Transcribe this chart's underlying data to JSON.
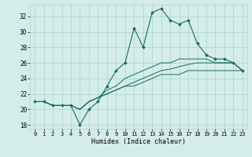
{
  "title": "",
  "xlabel": "Humidex (Indice chaleur)",
  "xlim": [
    -0.5,
    23.5
  ],
  "ylim": [
    17.5,
    33.5
  ],
  "xticks": [
    0,
    1,
    2,
    3,
    4,
    5,
    6,
    7,
    8,
    9,
    10,
    11,
    12,
    13,
    14,
    15,
    16,
    17,
    18,
    19,
    20,
    21,
    22,
    23
  ],
  "yticks": [
    18,
    20,
    22,
    24,
    26,
    28,
    30,
    32
  ],
  "bg_color": "#d4ede9",
  "grid_color": "#a8d4cc",
  "line_color": "#1a6b5a",
  "main_line": [
    21,
    21,
    20.5,
    20.5,
    20.5,
    18,
    20,
    21,
    23,
    25,
    26,
    30.5,
    28,
    32.5,
    33,
    31.5,
    31,
    31.5,
    28.5,
    27,
    26.5,
    26.5,
    26,
    25
  ],
  "line2": [
    21,
    21,
    20.5,
    20.5,
    20.5,
    20,
    21,
    21.5,
    22.5,
    23,
    24,
    24.5,
    25,
    25.5,
    26,
    26,
    26.5,
    26.5,
    26.5,
    26.5,
    26,
    26,
    26,
    25
  ],
  "line3": [
    21,
    21,
    20.5,
    20.5,
    20.5,
    20,
    21,
    21.5,
    22,
    22.5,
    23,
    23.5,
    24,
    24.5,
    25,
    25.2,
    25.5,
    25.8,
    26,
    26,
    26,
    26,
    26,
    25
  ],
  "line4": [
    21,
    21,
    20.5,
    20.5,
    20.5,
    20,
    21,
    21.5,
    22,
    22.5,
    23,
    23,
    23.5,
    24,
    24.5,
    24.5,
    24.5,
    25,
    25,
    25,
    25,
    25,
    25,
    25
  ]
}
